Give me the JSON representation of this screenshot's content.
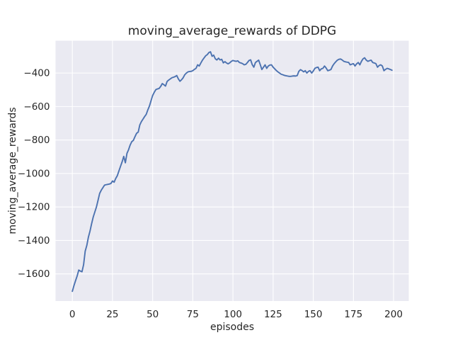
{
  "figure": {
    "title": "moving_average_rewards of DDPG",
    "xlabel": "episodes",
    "ylabel": "moving_average_rewards"
  },
  "chart_data": {
    "type": "line",
    "title": "moving_average_rewards of DDPG",
    "xlabel": "episodes",
    "ylabel": "moving_average_rewards",
    "style": "seaborn-darkgrid",
    "grid": true,
    "legend": false,
    "xlim": [
      -10.45,
      209.45
    ],
    "ylim": [
      -1762,
      -207
    ],
    "xticks": {
      "values": [
        0,
        25,
        50,
        75,
        100,
        125,
        150,
        175,
        200
      ],
      "labels": [
        "0",
        "25",
        "50",
        "75",
        "100",
        "125",
        "150",
        "175",
        "200"
      ]
    },
    "yticks": {
      "values": [
        -400,
        -600,
        -800,
        -1000,
        -1200,
        -1400,
        -1600
      ],
      "labels": [
        "−400",
        "−600",
        "−800",
        "−1000",
        "−1200",
        "−1400",
        "−1600"
      ]
    },
    "colors": {
      "figure_background": "#FFFFFF",
      "axes_background": "#EAEAF2",
      "grid": "#FFFFFF",
      "line": "#4C72B0",
      "text": "#262626"
    },
    "series": [
      {
        "name": "moving_average_rewards",
        "x": [
          0,
          1,
          2,
          3,
          4,
          5,
          6,
          7,
          8,
          9,
          10,
          11,
          12,
          13,
          14,
          15,
          16,
          17,
          18,
          19,
          20,
          21,
          22,
          23,
          24,
          25,
          26,
          27,
          28,
          29,
          30,
          31,
          32,
          33,
          34,
          35,
          36,
          37,
          38,
          39,
          40,
          41,
          42,
          43,
          44,
          45,
          46,
          47,
          48,
          49,
          50,
          51,
          52,
          53,
          54,
          55,
          56,
          57,
          58,
          59,
          60,
          61,
          62,
          63,
          64,
          65,
          66,
          67,
          68,
          69,
          70,
          71,
          72,
          73,
          74,
          75,
          76,
          77,
          78,
          79,
          80,
          81,
          82,
          83,
          84,
          85,
          86,
          87,
          88,
          89,
          90,
          91,
          92,
          93,
          94,
          95,
          96,
          97,
          98,
          99,
          100,
          101,
          102,
          103,
          104,
          105,
          106,
          107,
          108,
          109,
          110,
          111,
          112,
          113,
          114,
          115,
          116,
          117,
          118,
          119,
          120,
          121,
          122,
          123,
          124,
          125,
          126,
          127,
          128,
          129,
          130,
          131,
          132,
          133,
          134,
          135,
          136,
          137,
          138,
          139,
          140,
          141,
          142,
          143,
          144,
          145,
          146,
          147,
          148,
          149,
          150,
          151,
          152,
          153,
          154,
          155,
          156,
          157,
          158,
          159,
          160,
          161,
          162,
          163,
          164,
          165,
          166,
          167,
          168,
          169,
          170,
          171,
          172,
          173,
          174,
          175,
          176,
          177,
          178,
          179,
          180,
          181,
          182,
          183,
          184,
          185,
          186,
          187,
          188,
          189,
          190,
          191,
          192,
          193,
          194,
          195,
          196,
          197,
          198,
          199
        ],
        "y": [
          -1704,
          -1670,
          -1640,
          -1612,
          -1577,
          -1583,
          -1587,
          -1545,
          -1464,
          -1430,
          -1380,
          -1344,
          -1300,
          -1260,
          -1230,
          -1200,
          -1160,
          -1119,
          -1100,
          -1085,
          -1070,
          -1067,
          -1065,
          -1063,
          -1060,
          -1045,
          -1052,
          -1030,
          -1013,
          -985,
          -957,
          -930,
          -898,
          -936,
          -880,
          -858,
          -830,
          -810,
          -802,
          -780,
          -760,
          -753,
          -710,
          -690,
          -675,
          -660,
          -647,
          -620,
          -597,
          -565,
          -534,
          -515,
          -499,
          -495,
          -492,
          -480,
          -463,
          -470,
          -478,
          -450,
          -442,
          -435,
          -428,
          -425,
          -421,
          -415,
          -435,
          -449,
          -440,
          -428,
          -410,
          -400,
          -393,
          -391,
          -390,
          -386,
          -378,
          -372,
          -351,
          -358,
          -340,
          -323,
          -310,
          -297,
          -290,
          -278,
          -273,
          -300,
          -293,
          -315,
          -322,
          -311,
          -322,
          -318,
          -339,
          -332,
          -340,
          -345,
          -339,
          -330,
          -325,
          -328,
          -330,
          -327,
          -337,
          -340,
          -344,
          -351,
          -348,
          -337,
          -325,
          -321,
          -350,
          -365,
          -337,
          -330,
          -323,
          -350,
          -379,
          -365,
          -351,
          -372,
          -358,
          -352,
          -351,
          -365,
          -375,
          -385,
          -393,
          -400,
          -407,
          -410,
          -414,
          -416,
          -418,
          -420,
          -420,
          -418,
          -417,
          -418,
          -415,
          -390,
          -380,
          -385,
          -393,
          -386,
          -400,
          -390,
          -386,
          -400,
          -388,
          -372,
          -367,
          -365,
          -386,
          -375,
          -372,
          -358,
          -370,
          -386,
          -383,
          -379,
          -358,
          -344,
          -333,
          -323,
          -318,
          -316,
          -322,
          -330,
          -333,
          -335,
          -337,
          -351,
          -347,
          -344,
          -358,
          -345,
          -337,
          -351,
          -330,
          -315,
          -309,
          -323,
          -330,
          -326,
          -323,
          -337,
          -340,
          -344,
          -365,
          -355,
          -351,
          -358,
          -386,
          -378,
          -372,
          -375,
          -379,
          -383
        ]
      }
    ]
  }
}
